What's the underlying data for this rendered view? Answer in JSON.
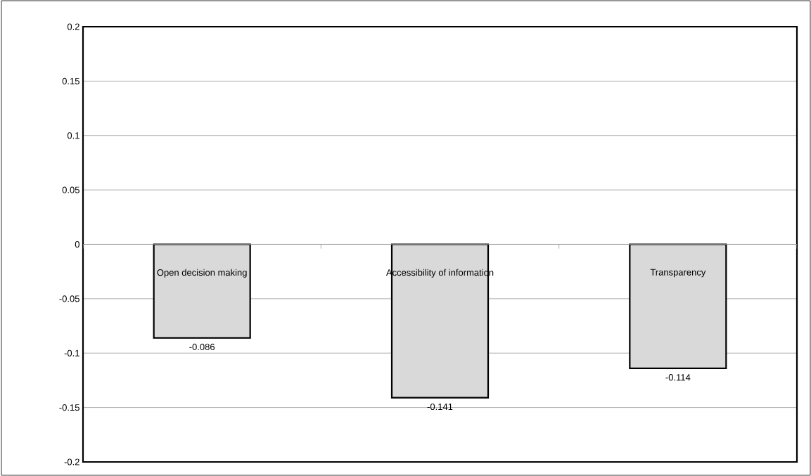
{
  "chart_data": {
    "type": "bar",
    "categories": [
      "Open decision making",
      "Accessibility of information",
      "Transparency"
    ],
    "values": [
      -0.086,
      -0.141,
      -0.114
    ],
    "color": "#d9d9d9",
    "ylim": [
      -0.2,
      0.2
    ],
    "yticks": [
      -0.2,
      -0.15,
      -0.1,
      -0.05,
      0,
      0.05,
      0.1,
      0.15,
      0.2
    ],
    "grid": "y",
    "data_labels": true
  }
}
